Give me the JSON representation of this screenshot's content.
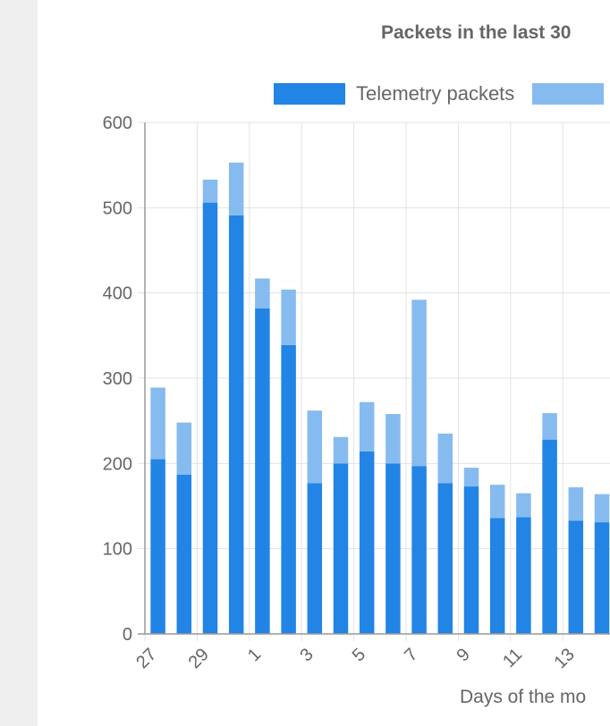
{
  "colors": {
    "telemetry": "#2284e5",
    "other": "#86bbf0",
    "grid": "#e3e3e3",
    "axis": "#999999",
    "text": "#666666",
    "sidebar": "#efefef"
  },
  "chart_data": {
    "type": "bar",
    "stacked": true,
    "title": "Packets in the last 30",
    "xlabel": "Days of the mo",
    "ylabel": "",
    "ylim": [
      0,
      600
    ],
    "yticks": [
      0,
      100,
      200,
      300,
      400,
      500,
      600
    ],
    "grid": true,
    "legend_position": "top",
    "categories": [
      "27",
      "28",
      "29",
      "30",
      "1",
      "2",
      "3",
      "4",
      "5",
      "6",
      "7",
      "8",
      "9",
      "10",
      "11",
      "12",
      "13",
      "14"
    ],
    "x_tick_labels_shown": [
      "27",
      "29",
      "1",
      "3",
      "5",
      "7",
      "9",
      "11",
      "13"
    ],
    "series": [
      {
        "name": "Telemetry packets",
        "values": [
          205,
          187,
          506,
          491,
          382,
          339,
          177,
          200,
          214,
          200,
          197,
          177,
          173,
          136,
          137,
          228,
          133,
          131
        ]
      },
      {
        "name": "",
        "values": [
          84,
          61,
          27,
          62,
          35,
          65,
          85,
          31,
          58,
          58,
          195,
          58,
          22,
          39,
          28,
          31,
          39,
          33
        ]
      }
    ]
  }
}
